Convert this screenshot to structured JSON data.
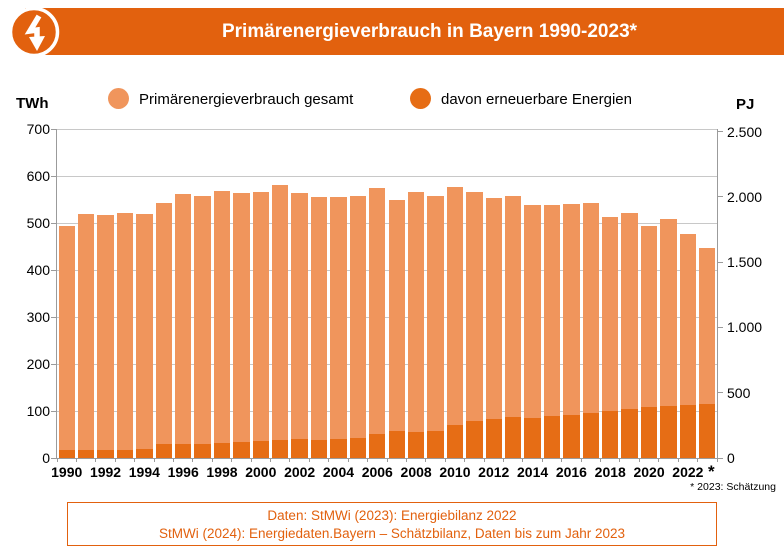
{
  "colors": {
    "orange_main": "#E2610E",
    "bar_total": "#F0955C",
    "bar_renewable": "#E66D15",
    "gridline": "#C8C8C8",
    "axis": "#9B9B9B",
    "white": "#FFFFFF"
  },
  "header": {
    "title": "Primärenergieverbrauch in Bayern 1990-2023*",
    "icon": "lightning-bolt"
  },
  "legend": {
    "left_unit": "TWh",
    "right_unit": "PJ",
    "items": [
      {
        "label": "Primärenergieverbrauch gesamt",
        "color": "#F0955C"
      },
      {
        "label": "davon erneuerbare Energien",
        "color": "#E66D15"
      }
    ]
  },
  "chart_data": {
    "type": "bar",
    "title": "Primärenergieverbrauch in Bayern 1990-2023*",
    "categories": [
      1990,
      1991,
      1992,
      1993,
      1994,
      1995,
      1996,
      1997,
      1998,
      1999,
      2000,
      2001,
      2002,
      2003,
      2004,
      2005,
      2006,
      2007,
      2008,
      2009,
      2010,
      2011,
      2012,
      2013,
      2014,
      2015,
      2016,
      2017,
      2018,
      2019,
      2020,
      2021,
      2022,
      2023
    ],
    "series": [
      {
        "name": "Primärenergieverbrauch gesamt",
        "color": "#F0955C",
        "values": [
          494,
          520,
          516,
          522,
          519,
          542,
          561,
          557,
          568,
          563,
          566,
          580,
          563,
          555,
          556,
          557,
          575,
          550,
          566,
          558,
          577,
          566,
          554,
          558,
          539,
          539,
          540,
          543,
          512,
          521,
          493,
          508,
          477,
          447
        ]
      },
      {
        "name": "davon erneuerbare Energien",
        "color": "#E66D15",
        "overlay_of": "Primärenergieverbrauch gesamt",
        "values": [
          17,
          16,
          17,
          18,
          20,
          30,
          29,
          30,
          31,
          33,
          36,
          38,
          40,
          39,
          41,
          43,
          51,
          57,
          56,
          58,
          71,
          78,
          84,
          87,
          85,
          90,
          92,
          96,
          100,
          104,
          108,
          111,
          113,
          115
        ]
      }
    ],
    "y_left": {
      "unit": "TWh",
      "min": 0,
      "max": 700,
      "step": 100,
      "tick_labels": [
        "0",
        "100",
        "200",
        "300",
        "400",
        "500",
        "600",
        "700"
      ]
    },
    "y_right": {
      "unit": "PJ",
      "pj_per_twh": 3.6,
      "ticks": [
        {
          "pj": 0,
          "label": "0"
        },
        {
          "pj": 500,
          "label": "500"
        },
        {
          "pj": 1000,
          "label": "1.000"
        },
        {
          "pj": 1500,
          "label": "1.500"
        },
        {
          "pj": 2000,
          "label": "2.000"
        },
        {
          "pj": 2500,
          "label": "2.500"
        }
      ]
    },
    "x_tick_labels": [
      "1990",
      "1992",
      "1994",
      "1996",
      "1998",
      "2000",
      "2002",
      "2004",
      "2006",
      "2008",
      "2010",
      "2012",
      "2014",
      "2016",
      "2018",
      "2020",
      "2022"
    ],
    "estimate_marker": "*",
    "grid": true,
    "legend_position": "top"
  },
  "annotations": {
    "estimate_note": "* 2023: Schätzung"
  },
  "footer": {
    "line1": "Daten: StMWi (2023): Energiebilanz 2022",
    "line2": "StMWi (2024): Energiedaten.Bayern – Schätzbilanz, Daten bis zum Jahr 2023"
  }
}
